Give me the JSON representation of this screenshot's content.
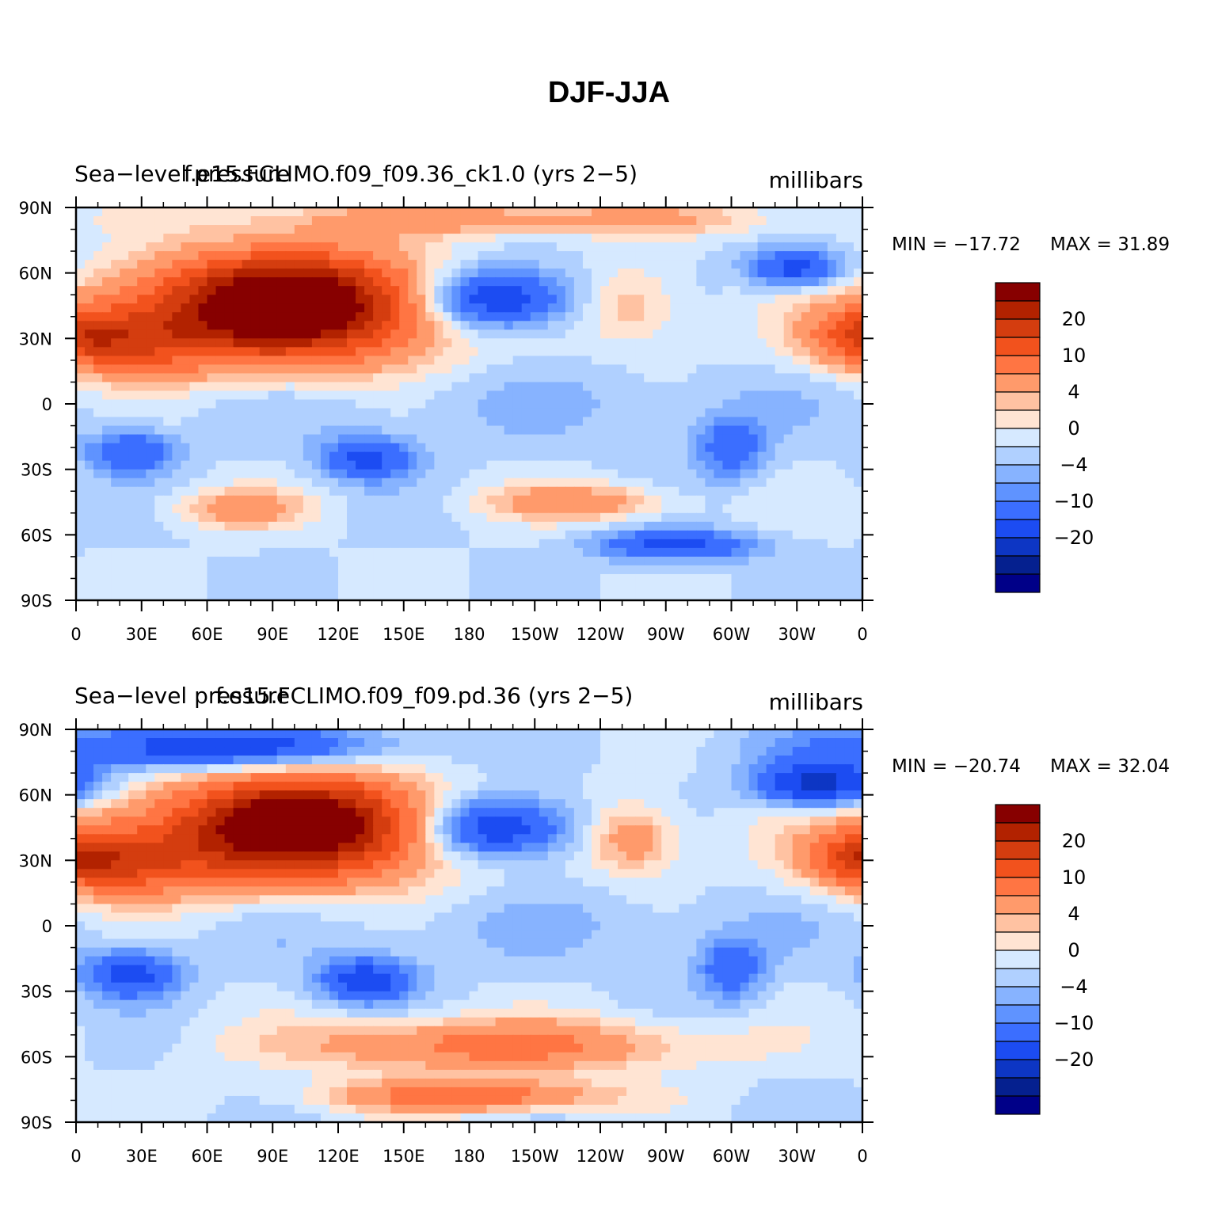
{
  "figure_title": "DJF-JJA",
  "chart_data": [
    {
      "type": "heatmap",
      "field_label": "Sea−level pressure",
      "case_label": "f.e15.FCLIMO.f09_f09.36_ck1.0 (yrs 2−5)",
      "units_label": "millibars",
      "min_label": "MIN = −17.72",
      "max_label": "MAX =   31.89",
      "min": -17.72,
      "max": 31.89,
      "x_ticks": [
        "0",
        "30E",
        "60E",
        "90E",
        "120E",
        "150E",
        "180",
        "150W",
        "120W",
        "90W",
        "60W",
        "30W",
        "0"
      ],
      "y_ticks": [
        "90N",
        "60N",
        "30N",
        "0",
        "30S",
        "60S",
        "90S"
      ],
      "xlim": [
        0,
        360
      ],
      "ylim": [
        -90,
        90
      ],
      "features": [
        {
          "name": "siberian-high",
          "lon": 100,
          "lat": 48,
          "value": 30,
          "rlon": 55,
          "rlat": 22
        },
        {
          "name": "asia-high-broad",
          "lon": 80,
          "lat": 38,
          "value": 16,
          "rlon": 80,
          "rlat": 24
        },
        {
          "name": "sahara-high",
          "lon": 20,
          "lat": 28,
          "value": 12,
          "rlon": 35,
          "rlat": 14
        },
        {
          "name": "aleutian-low",
          "lon": 190,
          "lat": 48,
          "value": -17,
          "rlon": 35,
          "rlat": 14
        },
        {
          "name": "icelandic-low",
          "lon": 330,
          "lat": 62,
          "value": -13,
          "rlon": 22,
          "rlat": 9
        },
        {
          "name": "n-america-high",
          "lon": 255,
          "lat": 45,
          "value": 6,
          "rlon": 22,
          "rlat": 18
        },
        {
          "name": "azores-high",
          "lon": 360,
          "lat": 32,
          "value": 10,
          "rlon": 22,
          "rlat": 12
        },
        {
          "name": "arctic-high",
          "lon": 200,
          "lat": 85,
          "value": 8,
          "rlon": 120,
          "rlat": 8
        },
        {
          "name": "africa-low",
          "lon": 25,
          "lat": -22,
          "value": -10,
          "rlon": 20,
          "rlat": 10
        },
        {
          "name": "australia-low",
          "lon": 133,
          "lat": -25,
          "value": -11,
          "rlon": 22,
          "rlat": 10
        },
        {
          "name": "s-america-low",
          "lon": 300,
          "lat": -20,
          "value": -9,
          "rlon": 16,
          "rlat": 14
        },
        {
          "name": "indian-ocean-high",
          "lon": 75,
          "lat": -48,
          "value": 8,
          "rlon": 30,
          "rlat": 9
        },
        {
          "name": "s-pacific-high",
          "lon": 230,
          "lat": -45,
          "value": 9,
          "rlon": 40,
          "rlat": 8
        },
        {
          "name": "amundsen-low",
          "lon": 275,
          "lat": -65,
          "value": -12,
          "rlon": 35,
          "rlat": 7
        },
        {
          "name": "tropics-low",
          "lon": 200,
          "lat": 0,
          "value": -2,
          "rlon": 170,
          "rlat": 18
        }
      ]
    },
    {
      "type": "heatmap",
      "field_label": "Sea−level pressure",
      "case_label": "f.e15.FCLIMO.f09_f09.pd.36 (yrs 2−5)",
      "units_label": "millibars",
      "min_label": "MIN = −20.74",
      "max_label": "MAX =   32.04",
      "min": -20.74,
      "max": 32.04,
      "x_ticks": [
        "0",
        "30E",
        "60E",
        "90E",
        "120E",
        "150E",
        "180",
        "150W",
        "120W",
        "90W",
        "60W",
        "30W",
        "0"
      ],
      "y_ticks": [
        "90N",
        "60N",
        "30N",
        "0",
        "30S",
        "60S",
        "90S"
      ],
      "xlim": [
        0,
        360
      ],
      "ylim": [
        -90,
        90
      ],
      "features": [
        {
          "name": "siberian-high",
          "lon": 105,
          "lat": 48,
          "value": 30,
          "rlon": 50,
          "rlat": 20
        },
        {
          "name": "asia-high-broad",
          "lon": 80,
          "lat": 38,
          "value": 15,
          "rlon": 85,
          "rlat": 24
        },
        {
          "name": "sahara-high",
          "lon": 20,
          "lat": 28,
          "value": 12,
          "rlon": 35,
          "rlat": 14
        },
        {
          "name": "aleutian-low",
          "lon": 190,
          "lat": 45,
          "value": -17,
          "rlon": 35,
          "rlat": 14
        },
        {
          "name": "icelandic-low",
          "lon": 340,
          "lat": 65,
          "value": -18,
          "rlon": 28,
          "rlat": 10
        },
        {
          "name": "n-america-high",
          "lon": 255,
          "lat": 40,
          "value": 9,
          "rlon": 20,
          "rlat": 16
        },
        {
          "name": "azores-high",
          "lon": 360,
          "lat": 32,
          "value": 12,
          "rlon": 22,
          "rlat": 12
        },
        {
          "name": "arctic-low",
          "lon": 60,
          "lat": 82,
          "value": -14,
          "rlon": 80,
          "rlat": 10
        },
        {
          "name": "africa-low",
          "lon": 25,
          "lat": -22,
          "value": -12,
          "rlon": 22,
          "rlat": 11
        },
        {
          "name": "australia-low",
          "lon": 133,
          "lat": -25,
          "value": -13,
          "rlon": 22,
          "rlat": 10
        },
        {
          "name": "s-america-low",
          "lon": 300,
          "lat": -20,
          "value": -9,
          "rlon": 15,
          "rlat": 14
        },
        {
          "name": "s-ocean-high",
          "lon": 190,
          "lat": -55,
          "value": 12,
          "rlon": 90,
          "rlat": 12
        },
        {
          "name": "antarctic-high",
          "lon": 180,
          "lat": -78,
          "value": 14,
          "rlon": 60,
          "rlat": 7
        },
        {
          "name": "tropics-low",
          "lon": 200,
          "lat": 0,
          "value": -2,
          "rlon": 170,
          "rlat": 18
        }
      ]
    }
  ],
  "colorbar": {
    "colors": [
      "#870000",
      "#b22200",
      "#d43d0f",
      "#f2521d",
      "#ff7543",
      "#ff9a6b",
      "#ffc2a2",
      "#ffe4d3",
      "#d6e9ff",
      "#b0d0ff",
      "#87b3ff",
      "#5f93ff",
      "#3b6eff",
      "#1c4cf2",
      "#0d36c4",
      "#05208f",
      "#000088"
    ],
    "labels": [
      "20",
      "10",
      "4",
      "0",
      "−4",
      "−10",
      "−20"
    ],
    "levels": [
      -30,
      -20,
      -15,
      -10,
      -6,
      -4,
      -2,
      0,
      2,
      4,
      6,
      10,
      15,
      20,
      25,
      30
    ]
  }
}
